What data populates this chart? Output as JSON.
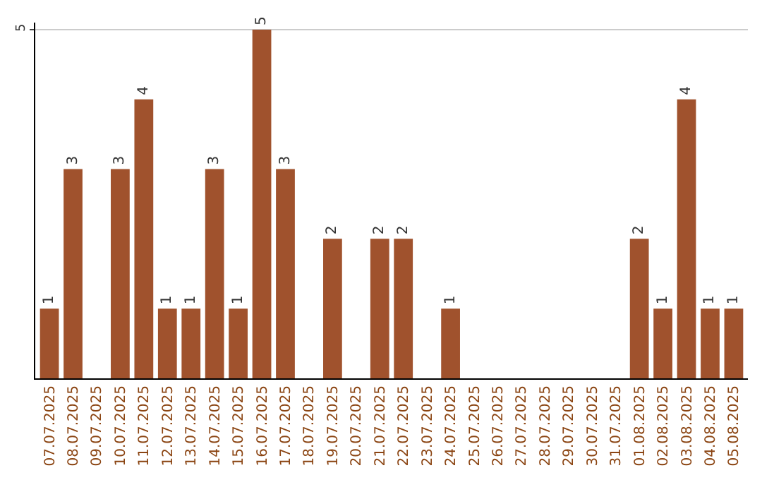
{
  "chart_data": {
    "type": "bar",
    "categories": [
      "07.07.2025",
      "08.07.2025",
      "09.07.2025",
      "10.07.2025",
      "11.07.2025",
      "12.07.2025",
      "13.07.2025",
      "14.07.2025",
      "15.07.2025",
      "16.07.2025",
      "17.07.2025",
      "18.07.2025",
      "19.07.2025",
      "20.07.2025",
      "21.07.2025",
      "22.07.2025",
      "23.07.2025",
      "24.07.2025",
      "25.07.2025",
      "26.07.2025",
      "27.07.2025",
      "28.07.2025",
      "29.07.2025",
      "30.07.2025",
      "31.07.2025",
      "01.08.2025",
      "02.08.2025",
      "03.08.2025",
      "04.08.2025",
      "05.08.2025"
    ],
    "values": [
      1,
      3,
      0,
      3,
      4,
      1,
      1,
      3,
      1,
      5,
      3,
      0,
      2,
      0,
      2,
      2,
      0,
      1,
      0,
      0,
      0,
      0,
      0,
      0,
      0,
      2,
      1,
      4,
      1,
      1
    ],
    "value_labels": [
      "1",
      "3",
      null,
      "3",
      "4",
      "1",
      "1",
      "3",
      "1",
      "5",
      "3",
      null,
      "2",
      null,
      "2",
      "2",
      null,
      "1",
      null,
      null,
      null,
      null,
      null,
      null,
      null,
      "2",
      "1",
      "4",
      "1",
      "1"
    ],
    "color": "#a0522d",
    "ylim": [
      0,
      5.1
    ],
    "yticks": [
      5
    ],
    "grid": "y"
  }
}
